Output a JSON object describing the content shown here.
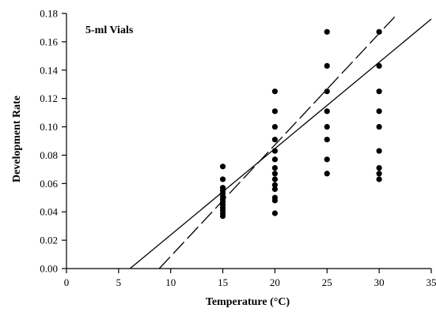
{
  "chart_data": {
    "type": "scatter",
    "title": "5-ml Vials",
    "xlabel": "Temperature (°C)",
    "ylabel": "Development Rate",
    "xlim": [
      0,
      35
    ],
    "ylim": [
      0,
      0.18
    ],
    "x_ticks": [
      0,
      5,
      10,
      15,
      20,
      25,
      30,
      35
    ],
    "x_tick_labels": [
      "0",
      "5",
      "10",
      "15",
      "20",
      "25",
      "30",
      "35"
    ],
    "y_ticks": [
      0,
      0.02,
      0.04,
      0.06,
      0.08,
      0.1,
      0.12,
      0.14,
      0.16,
      0.18
    ],
    "y_tick_labels": [
      "0.00",
      "0.02",
      "0.04",
      "0.06",
      "0.08",
      "0.10",
      "0.12",
      "0.14",
      "0.16",
      "0.18"
    ],
    "grid": false,
    "series": [
      {
        "points": [
          {
            "x": 15,
            "y": 0.072
          },
          {
            "x": 15,
            "y": 0.063
          },
          {
            "x": 15,
            "y": 0.057
          },
          {
            "x": 15,
            "y": 0.055
          },
          {
            "x": 15,
            "y": 0.053
          },
          {
            "x": 15,
            "y": 0.051
          },
          {
            "x": 15,
            "y": 0.049
          },
          {
            "x": 15,
            "y": 0.047
          },
          {
            "x": 15,
            "y": 0.045
          },
          {
            "x": 15,
            "y": 0.043
          },
          {
            "x": 15,
            "y": 0.041
          },
          {
            "x": 15,
            "y": 0.039
          },
          {
            "x": 15,
            "y": 0.037
          },
          {
            "x": 20,
            "y": 0.125
          },
          {
            "x": 20,
            "y": 0.111
          },
          {
            "x": 20,
            "y": 0.1
          },
          {
            "x": 20,
            "y": 0.091
          },
          {
            "x": 20,
            "y": 0.083
          },
          {
            "x": 20,
            "y": 0.077
          },
          {
            "x": 20,
            "y": 0.071
          },
          {
            "x": 20,
            "y": 0.067
          },
          {
            "x": 20,
            "y": 0.063
          },
          {
            "x": 20,
            "y": 0.059
          },
          {
            "x": 20,
            "y": 0.056
          },
          {
            "x": 20,
            "y": 0.05
          },
          {
            "x": 20,
            "y": 0.048
          },
          {
            "x": 20,
            "y": 0.039
          },
          {
            "x": 25,
            "y": 0.167
          },
          {
            "x": 25,
            "y": 0.143
          },
          {
            "x": 25,
            "y": 0.125
          },
          {
            "x": 25,
            "y": 0.111
          },
          {
            "x": 25,
            "y": 0.1
          },
          {
            "x": 25,
            "y": 0.091
          },
          {
            "x": 25,
            "y": 0.077
          },
          {
            "x": 25,
            "y": 0.067
          },
          {
            "x": 30,
            "y": 0.167
          },
          {
            "x": 30,
            "y": 0.143
          },
          {
            "x": 30,
            "y": 0.125
          },
          {
            "x": 30,
            "y": 0.111
          },
          {
            "x": 30,
            "y": 0.1
          },
          {
            "x": 30,
            "y": 0.083
          },
          {
            "x": 30,
            "y": 0.071
          },
          {
            "x": 30,
            "y": 0.067
          },
          {
            "x": 30,
            "y": 0.063
          }
        ]
      }
    ],
    "lines": [
      {
        "style": "solid",
        "x": [
          6.1,
          35
        ],
        "y": [
          0,
          0.176
        ]
      },
      {
        "style": "dashed",
        "x": [
          8.9,
          31.8
        ],
        "y": [
          0,
          0.18
        ]
      }
    ],
    "colors": {
      "points": "#000000",
      "lines": "#000000",
      "background": "#ffffff"
    }
  }
}
